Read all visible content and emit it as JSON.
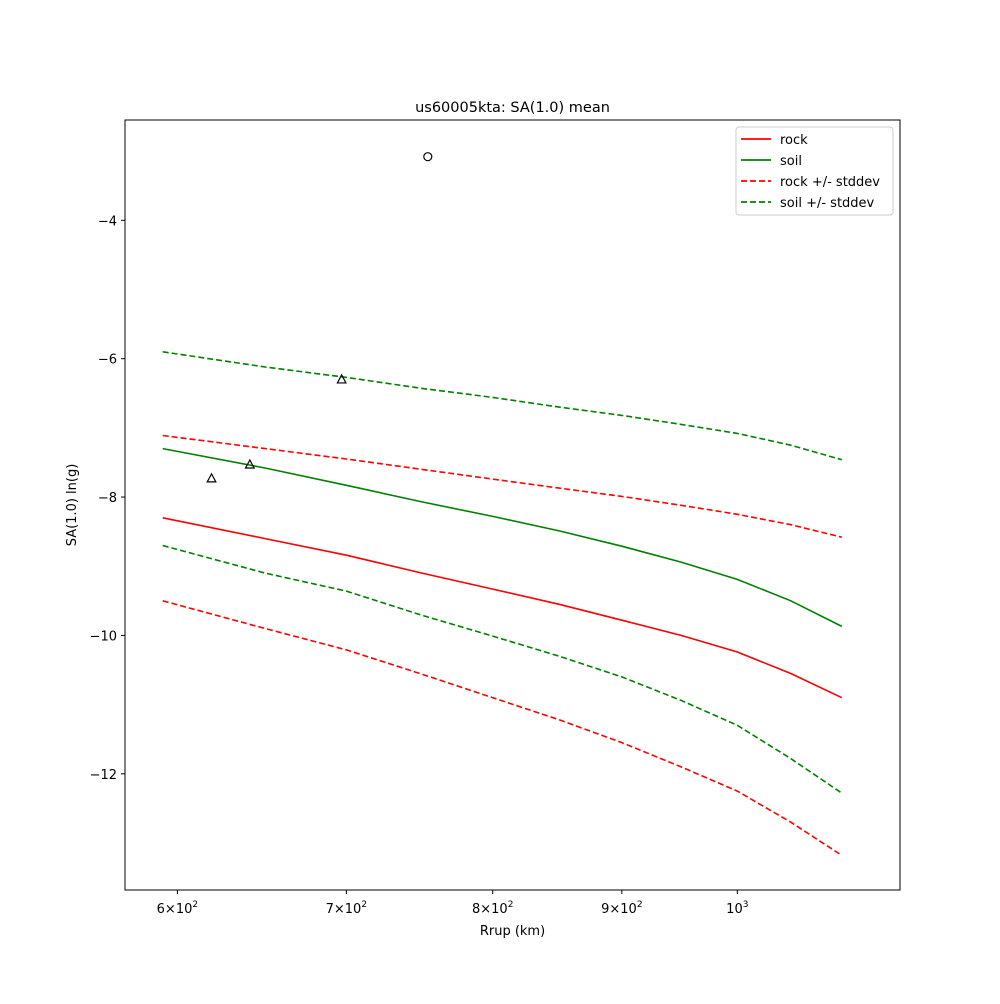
{
  "chart_data": {
    "type": "line",
    "title": "us60005kta: SA(1.0) mean",
    "xlabel": "Rrup (km)",
    "ylabel": "SA(1.0) ln(g)",
    "xscale": "log",
    "xlim": [
      572,
      1160
    ],
    "ylim": [
      -13.68,
      -2.55
    ],
    "grid": false,
    "legend_position": "top-right",
    "x_ticks": [
      {
        "value": 600,
        "base": "6×10",
        "exp": "2"
      },
      {
        "value": 700,
        "base": "7×10",
        "exp": "2"
      },
      {
        "value": 800,
        "base": "8×10",
        "exp": "2"
      },
      {
        "value": 900,
        "base": "9×10",
        "exp": "2"
      },
      {
        "value": 1000,
        "base": "10",
        "exp": "3"
      }
    ],
    "y_ticks": [
      {
        "value": -4,
        "label": "−4"
      },
      {
        "value": -6,
        "label": "−6"
      },
      {
        "value": -8,
        "label": "−8"
      },
      {
        "value": -10,
        "label": "−10"
      },
      {
        "value": -12,
        "label": "−12"
      }
    ],
    "x": [
      592,
      650,
      700,
      750,
      800,
      850,
      900,
      950,
      1000,
      1050,
      1100
    ],
    "series": [
      {
        "name": "rock",
        "color": "#ff0000",
        "dash": false,
        "in_legend": true,
        "values": [
          -8.3,
          -8.6,
          -8.84,
          -9.1,
          -9.33,
          -9.55,
          -9.78,
          -10.0,
          -10.24,
          -10.55,
          -10.9
        ]
      },
      {
        "name": "soil",
        "color": "#008000",
        "dash": false,
        "in_legend": true,
        "values": [
          -7.3,
          -7.58,
          -7.83,
          -8.07,
          -8.28,
          -8.49,
          -8.71,
          -8.94,
          -9.19,
          -9.5,
          -9.87
        ]
      },
      {
        "name": "rock +/- stddev",
        "color": "#ff0000",
        "dash": true,
        "in_legend": true,
        "values": [
          -7.11,
          -7.3,
          -7.45,
          -7.6,
          -7.74,
          -7.87,
          -7.99,
          -8.12,
          -8.25,
          -8.4,
          -8.58
        ]
      },
      {
        "name": "rock +/- stddev",
        "color": "#ff0000",
        "dash": true,
        "in_legend": false,
        "values": [
          -9.5,
          -9.9,
          -10.21,
          -10.56,
          -10.9,
          -11.22,
          -11.55,
          -11.9,
          -12.25,
          -12.7,
          -13.18
        ]
      },
      {
        "name": "soil +/- stddev",
        "color": "#008000",
        "dash": true,
        "in_legend": true,
        "values": [
          -5.9,
          -6.12,
          -6.27,
          -6.43,
          -6.56,
          -6.7,
          -6.82,
          -6.95,
          -7.08,
          -7.25,
          -7.46
        ]
      },
      {
        "name": "soil +/- stddev",
        "color": "#008000",
        "dash": true,
        "in_legend": false,
        "values": [
          -8.7,
          -9.1,
          -9.36,
          -9.71,
          -10.01,
          -10.3,
          -10.6,
          -10.94,
          -11.3,
          -11.78,
          -12.28
        ]
      }
    ],
    "markers": [
      {
        "shape": "circle",
        "x": 754,
        "y": -3.08
      },
      {
        "shape": "triangle",
        "x": 697,
        "y": -6.3
      },
      {
        "shape": "triangle",
        "x": 641,
        "y": -7.53
      },
      {
        "shape": "triangle",
        "x": 619,
        "y": -7.73
      }
    ]
  }
}
